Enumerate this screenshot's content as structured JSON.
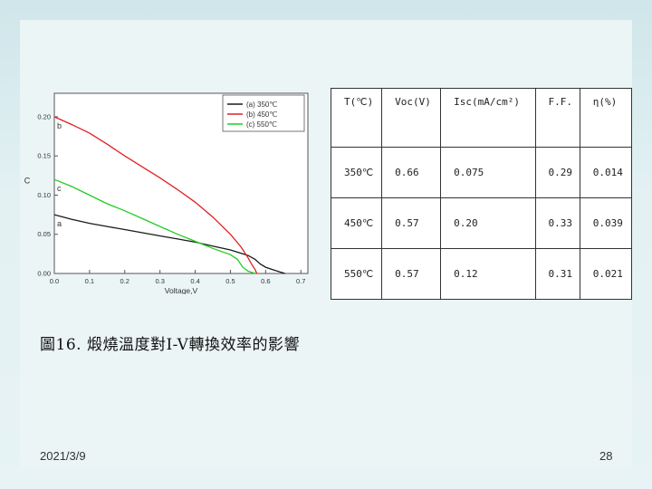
{
  "chart_data": {
    "type": "line",
    "xlabel": "Voltage,V",
    "ylabel": "C",
    "xlim": [
      0.0,
      0.72
    ],
    "ylim": [
      0.0,
      0.23
    ],
    "x_ticks": [
      "0.0",
      "0.1",
      "0.2",
      "0.3",
      "0.4",
      "0.5",
      "0.6",
      "0.7"
    ],
    "y_ticks": [
      "0.00",
      "0.05",
      "0.10",
      "0.15",
      "0.20"
    ],
    "legend_position": "top-right",
    "grid": false,
    "annotations": [
      "b",
      "c",
      "a"
    ],
    "series": [
      {
        "name": "(a) 350℃",
        "label": "a",
        "color": "#1a1a1a",
        "x": [
          0.0,
          0.05,
          0.1,
          0.15,
          0.2,
          0.25,
          0.3,
          0.35,
          0.4,
          0.45,
          0.5,
          0.55,
          0.57,
          0.585,
          0.6,
          0.62,
          0.64,
          0.655
        ],
        "y": [
          0.075,
          0.069,
          0.064,
          0.06,
          0.056,
          0.052,
          0.048,
          0.044,
          0.04,
          0.035,
          0.03,
          0.023,
          0.018,
          0.012,
          0.008,
          0.005,
          0.002,
          0.0
        ]
      },
      {
        "name": "(b) 450℃",
        "label": "b",
        "color": "#e02020",
        "x": [
          0.0,
          0.05,
          0.1,
          0.15,
          0.2,
          0.25,
          0.3,
          0.35,
          0.4,
          0.45,
          0.5,
          0.53,
          0.55,
          0.56,
          0.57,
          0.575
        ],
        "y": [
          0.2,
          0.19,
          0.179,
          0.165,
          0.15,
          0.136,
          0.122,
          0.107,
          0.091,
          0.072,
          0.05,
          0.034,
          0.02,
          0.012,
          0.005,
          0.0
        ]
      },
      {
        "name": "(c) 550℃",
        "label": "c",
        "color": "#22cc22",
        "x": [
          0.0,
          0.05,
          0.1,
          0.15,
          0.2,
          0.25,
          0.3,
          0.35,
          0.4,
          0.45,
          0.5,
          0.52,
          0.535,
          0.55,
          0.57
        ],
        "y": [
          0.12,
          0.111,
          0.1,
          0.089,
          0.08,
          0.07,
          0.06,
          0.05,
          0.041,
          0.032,
          0.024,
          0.018,
          0.008,
          0.003,
          0.0
        ]
      }
    ]
  },
  "table": {
    "headers": [
      "T(℃)",
      "Voc(V)",
      "Isc(mA/cm²)",
      "F.F.",
      "η(%)"
    ],
    "rows": [
      [
        "350℃",
        "0.66",
        "0.075",
        "0.29",
        "0.014"
      ],
      [
        "450℃",
        "0.57",
        "0.20",
        "0.33",
        "0.039"
      ],
      [
        "550℃",
        "0.57",
        "0.12",
        "0.31",
        "0.021"
      ]
    ]
  },
  "caption": "圖16. 煅燒溫度對I-V轉換效率的影響",
  "footer": {
    "date": "2021/3/9",
    "page_number": "28"
  },
  "colors": {
    "background": "#e3f1f3",
    "series_a": "#1a1a1a",
    "series_b": "#e02020",
    "series_c": "#22cc22"
  }
}
